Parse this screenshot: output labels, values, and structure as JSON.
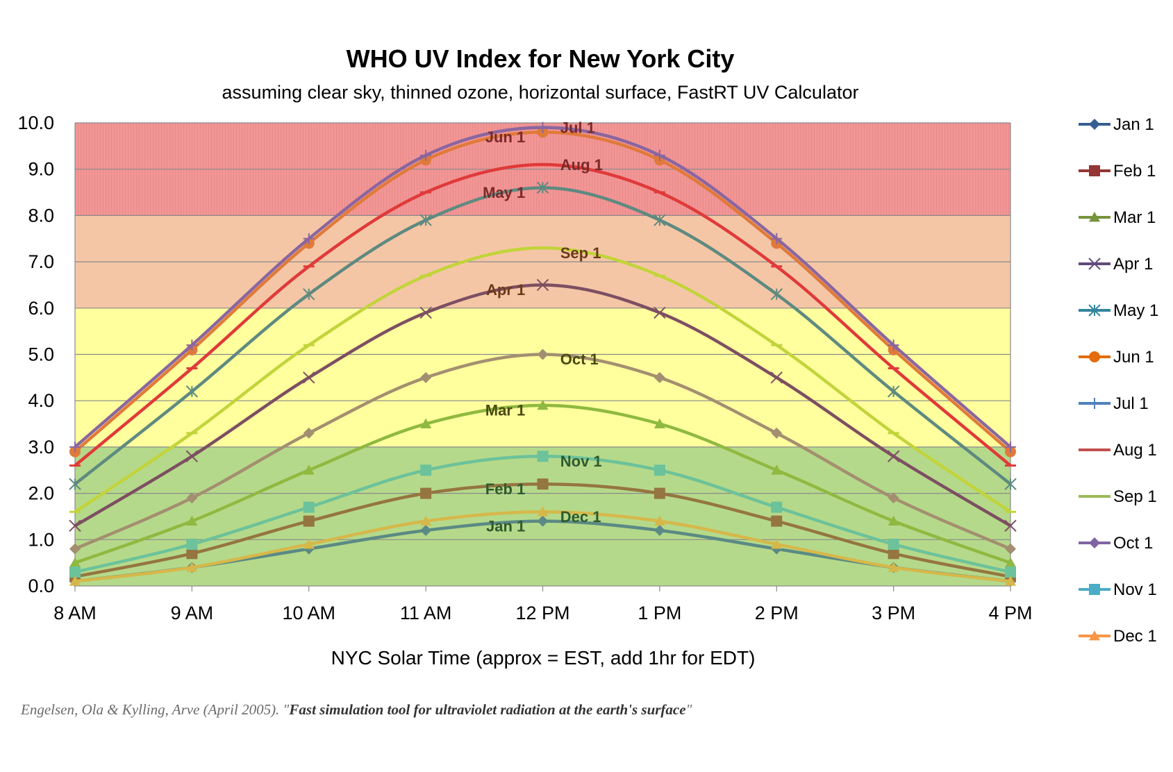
{
  "chart_data": {
    "type": "line",
    "title": "WHO UV Index for New York City",
    "subtitle": "assuming clear sky, thinned ozone, horizontal surface, FastRT UV Calculator",
    "xlabel": "NYC Solar Time (approx = EST, add 1hr for EDT)",
    "ylabel": "",
    "categories": [
      "8 AM",
      "9 AM",
      "10 AM",
      "11 AM",
      "12 PM",
      "1 PM",
      "2 PM",
      "3 PM",
      "4 PM"
    ],
    "y_ticks": [
      "0.0",
      "1.0",
      "2.0",
      "3.0",
      "4.0",
      "5.0",
      "6.0",
      "7.0",
      "8.0",
      "9.0",
      "10.0"
    ],
    "ylim": [
      0,
      10
    ],
    "grid": true,
    "legend_position": "right",
    "bands": [
      {
        "from": 0,
        "to": 3,
        "color": "#b5d98a"
      },
      {
        "from": 3,
        "to": 6,
        "color": "#ffff9e"
      },
      {
        "from": 6,
        "to": 8,
        "color": "#f5c6a6"
      },
      {
        "from": 8,
        "to": 10,
        "color": "#f29696"
      }
    ],
    "series": [
      {
        "name": "Jan 1",
        "color": "#5b8a84",
        "legend_color": "#355e91",
        "marker": "diamond",
        "values": [
          0.1,
          0.4,
          0.8,
          1.2,
          1.4,
          1.2,
          0.8,
          0.4,
          0.1
        ]
      },
      {
        "name": "Feb 1",
        "color": "#957540",
        "legend_color": "#943634",
        "marker": "square",
        "values": [
          0.2,
          0.7,
          1.4,
          2.0,
          2.2,
          2.0,
          1.4,
          0.7,
          0.2
        ]
      },
      {
        "name": "Mar 1",
        "color": "#8fb940",
        "legend_color": "#77933c",
        "marker": "triangle",
        "values": [
          0.5,
          1.4,
          2.5,
          3.5,
          3.9,
          3.5,
          2.5,
          1.4,
          0.5
        ]
      },
      {
        "name": "Apr 1",
        "color": "#7d4f62",
        "legend_color": "#604a7b",
        "marker": "x",
        "values": [
          1.3,
          2.8,
          4.5,
          5.9,
          6.5,
          5.9,
          4.5,
          2.8,
          1.3
        ]
      },
      {
        "name": "May 1",
        "color": "#5e8a80",
        "legend_color": "#31859c",
        "marker": "star",
        "values": [
          2.2,
          4.2,
          6.3,
          7.9,
          8.6,
          7.9,
          6.3,
          4.2,
          2.2
        ]
      },
      {
        "name": "Jun 1",
        "color": "#e07a3a",
        "legend_color": "#e46c0a",
        "marker": "circle",
        "values": [
          2.9,
          5.1,
          7.4,
          9.2,
          9.8,
          9.2,
          7.4,
          5.1,
          2.9
        ]
      },
      {
        "name": "Jul 1",
        "color": "#8a66a0",
        "legend_color": "#4f81bd",
        "marker": "plus",
        "values": [
          3.0,
          5.2,
          7.5,
          9.3,
          9.9,
          9.3,
          7.5,
          5.2,
          3.0
        ]
      },
      {
        "name": "Aug 1",
        "color": "#e03a3a",
        "legend_color": "#c0504d",
        "marker": "dash",
        "values": [
          2.6,
          4.7,
          6.9,
          8.5,
          9.1,
          8.5,
          6.9,
          4.7,
          2.6
        ]
      },
      {
        "name": "Sep 1",
        "color": "#c2d43a",
        "legend_color": "#9bbb59",
        "marker": "dash",
        "values": [
          1.6,
          3.3,
          5.2,
          6.7,
          7.3,
          6.7,
          5.2,
          3.3,
          1.6
        ]
      },
      {
        "name": "Oct 1",
        "color": "#a38f70",
        "legend_color": "#8064a2",
        "marker": "diamond",
        "values": [
          0.8,
          1.9,
          3.3,
          4.5,
          5.0,
          4.5,
          3.3,
          1.9,
          0.8
        ]
      },
      {
        "name": "Nov 1",
        "color": "#6cc29a",
        "legend_color": "#4bacc6",
        "marker": "square",
        "values": [
          0.3,
          0.9,
          1.7,
          2.5,
          2.8,
          2.5,
          1.7,
          0.9,
          0.3
        ]
      },
      {
        "name": "Dec 1",
        "color": "#d6b84a",
        "legend_color": "#f79646",
        "marker": "triangle",
        "values": [
          0.1,
          0.4,
          0.9,
          1.4,
          1.6,
          1.4,
          0.9,
          0.4,
          0.1
        ]
      }
    ],
    "annotations": [
      {
        "text": "Jul 1",
        "x": 12.15,
        "y": 9.9,
        "anchor": "start",
        "color": "#7a2a2a"
      },
      {
        "text": "Jun 1",
        "x": 11.85,
        "y": 9.7,
        "anchor": "end",
        "color": "#7a2a2a"
      },
      {
        "text": "Aug 1",
        "x": 12.15,
        "y": 9.1,
        "anchor": "start",
        "color": "#7a2a2a"
      },
      {
        "text": "May 1",
        "x": 11.85,
        "y": 8.5,
        "anchor": "end",
        "color": "#7a2a2a"
      },
      {
        "text": "Sep 1",
        "x": 12.15,
        "y": 7.2,
        "anchor": "start",
        "color": "#6b3a1a"
      },
      {
        "text": "Apr 1",
        "x": 11.85,
        "y": 6.4,
        "anchor": "end",
        "color": "#6b3a1a"
      },
      {
        "text": "Oct 1",
        "x": 12.15,
        "y": 4.9,
        "anchor": "start",
        "color": "#4a4a10"
      },
      {
        "text": "Mar 1",
        "x": 11.85,
        "y": 3.8,
        "anchor": "end",
        "color": "#4a4a10"
      },
      {
        "text": "Nov 1",
        "x": 12.15,
        "y": 2.7,
        "anchor": "start",
        "color": "#2e5a2e"
      },
      {
        "text": "Feb 1",
        "x": 11.85,
        "y": 2.1,
        "anchor": "end",
        "color": "#2e5a2e"
      },
      {
        "text": "Dec 1",
        "x": 12.15,
        "y": 1.5,
        "anchor": "start",
        "color": "#2e5a2e"
      },
      {
        "text": "Jan 1",
        "x": 11.85,
        "y": 1.3,
        "anchor": "end",
        "color": "#2e5a2e"
      }
    ]
  },
  "citation": {
    "authors": "Engelsen, Ola & Kylling, Arve (April 2005). \"",
    "work": "Fast simulation tool for ultraviolet radiation at the earth's surface",
    "end": "\""
  }
}
